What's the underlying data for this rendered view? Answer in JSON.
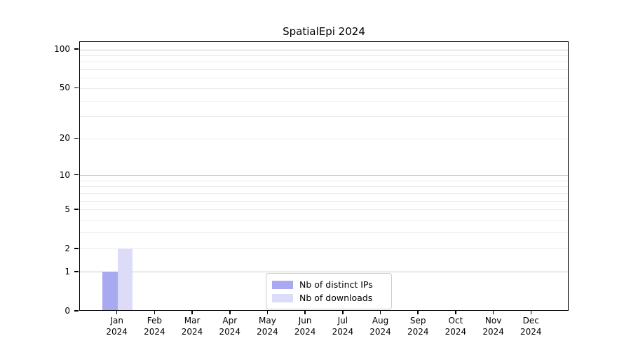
{
  "chart_data": {
    "type": "bar",
    "title": "SpatialEpi 2024",
    "categories": [
      "Jan 2024",
      "Feb 2024",
      "Mar 2024",
      "Apr 2024",
      "May 2024",
      "Jun 2024",
      "Jul 2024",
      "Aug 2024",
      "Sep 2024",
      "Oct 2024",
      "Nov 2024",
      "Dec 2024"
    ],
    "series": [
      {
        "name": "Nb of distinct IPs",
        "color": "#a9a9f2",
        "values": [
          1,
          0,
          0,
          0,
          0,
          0,
          0,
          0,
          0,
          0,
          0,
          0
        ]
      },
      {
        "name": "Nb of downloads",
        "color": "#dcdcf8",
        "values": [
          2,
          0,
          0,
          0,
          0,
          0,
          0,
          0,
          0,
          0,
          0,
          0
        ]
      }
    ],
    "xlabel": "",
    "ylabel": "",
    "y_scale": "log1p",
    "ylim": [
      0,
      114
    ],
    "y_tick_values": [
      0,
      1,
      2,
      5,
      10,
      20,
      50,
      100
    ],
    "grid": {
      "major_values": [
        1,
        10,
        100
      ],
      "minor_values": [
        2,
        3,
        4,
        5,
        6,
        7,
        8,
        9,
        20,
        30,
        40,
        50,
        60,
        70,
        80,
        90
      ],
      "major_color": "#c6c6c6",
      "minor_color": "#ebebeb"
    },
    "legend_position": "inside lower-center"
  },
  "colors": {
    "background": "#ffffff",
    "axis": "#000000",
    "text": "#000000",
    "legend_border": "#cccccc"
  }
}
